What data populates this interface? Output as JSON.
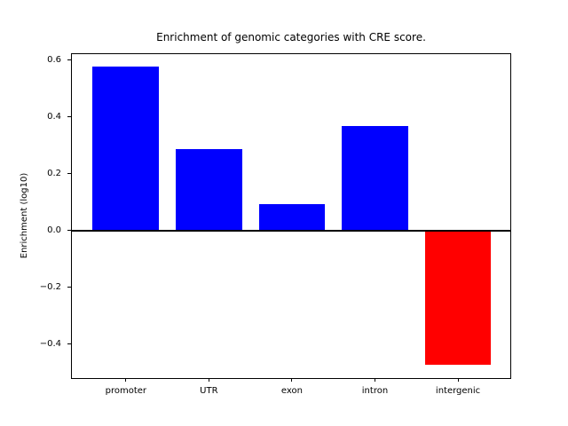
{
  "figure": {
    "background_color": "#ffffff",
    "text_color": "#000000"
  },
  "chart_data": {
    "type": "bar",
    "title": "Enrichment of genomic categories with CRE score.",
    "xlabel": "",
    "ylabel": "Enrichment (log10)",
    "categories": [
      "promoter",
      "UTR",
      "exon",
      "intron",
      "intergenic"
    ],
    "values": [
      0.575,
      0.285,
      0.092,
      0.367,
      -0.473
    ],
    "positive_color": "#0000ff",
    "negative_color": "#ff0000",
    "bar_colors": [
      "#0000ff",
      "#0000ff",
      "#0000ff",
      "#0000ff",
      "#ff0000"
    ],
    "yticks": [
      0.6,
      0.4,
      0.2,
      0.0,
      -0.2,
      -0.4
    ],
    "ytick_labels": [
      "0.6",
      "0.4",
      "0.2",
      "0.0",
      "−0.2",
      "−0.4"
    ],
    "ylim": [
      -0.52,
      0.62
    ],
    "xlim": [
      -0.65,
      4.63
    ],
    "bar_width_fraction": 0.8,
    "grid": false,
    "zero_line": true,
    "legend": null,
    "frame_color": "#000000"
  }
}
